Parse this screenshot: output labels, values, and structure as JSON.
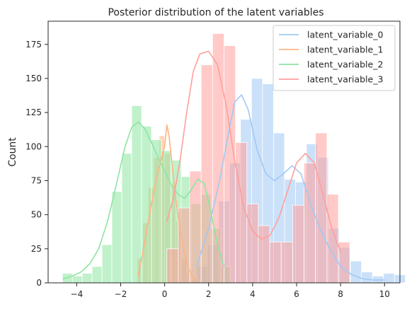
{
  "chart_data": {
    "type": "histogram",
    "title": "Posterior distribution of the latent variables",
    "xlabel": "",
    "ylabel": "Count",
    "xlim": [
      -5.3,
      10.7
    ],
    "ylim": [
      0,
      192
    ],
    "xticks": [
      -4,
      -2,
      0,
      2,
      4,
      6,
      8,
      10
    ],
    "yticks": [
      0,
      25,
      50,
      75,
      100,
      125,
      150,
      175
    ],
    "legend_position": "upper right",
    "series": [
      {
        "name": "latent_variable_0",
        "color": "#a1c9f4",
        "bin_start": 1.45,
        "bin_width": 0.5,
        "counts": [
          12,
          28,
          60,
          88,
          120,
          150,
          146,
          110,
          76,
          74,
          102,
          92,
          40,
          26,
          16,
          8,
          5,
          7,
          6
        ],
        "kde_x": [
          1.45,
          2.0,
          2.5,
          3.0,
          3.2,
          3.5,
          3.8,
          4.2,
          4.6,
          5.0,
          5.4,
          5.8,
          6.2,
          6.6,
          7.0,
          7.5,
          8.0,
          8.5,
          9.0,
          9.5,
          10.0
        ],
        "kde_y": [
          12,
          40,
          75,
          118,
          133,
          138,
          127,
          98,
          80,
          75,
          80,
          86,
          80,
          60,
          42,
          25,
          12,
          6,
          3,
          2,
          2
        ]
      },
      {
        "name": "latent_variable_1",
        "color": "#ffb482",
        "bin_start": -1.25,
        "bin_width": 0.25,
        "counts": [
          18,
          44,
          70,
          92,
          108,
          95,
          72,
          45,
          18,
          8,
          3
        ],
        "kde_x": [
          -1.2,
          -1.0,
          -0.8,
          -0.6,
          -0.4,
          -0.2,
          0.0,
          0.1,
          0.2,
          0.35,
          0.5,
          0.7,
          0.9,
          1.1,
          1.3,
          1.5
        ],
        "kde_y": [
          5,
          22,
          40,
          58,
          75,
          88,
          100,
          116,
          108,
          85,
          62,
          40,
          22,
          10,
          4,
          2
        ]
      },
      {
        "name": "latent_variable_2",
        "color": "#8de5a1",
        "bin_start": -4.65,
        "bin_width": 0.45,
        "counts": [
          7,
          5,
          7,
          12,
          28,
          67,
          95,
          130,
          115,
          105,
          97,
          90,
          78,
          58,
          65,
          40,
          12
        ],
        "kde_x": [
          -4.6,
          -4.2,
          -3.8,
          -3.4,
          -3.0,
          -2.6,
          -2.2,
          -1.8,
          -1.5,
          -1.2,
          -0.9,
          -0.6,
          -0.3,
          0.0,
          0.3,
          0.6,
          0.9,
          1.2,
          1.5,
          1.8,
          2.1,
          2.4,
          2.7
        ],
        "kde_y": [
          3,
          5,
          8,
          14,
          25,
          45,
          72,
          100,
          114,
          118,
          113,
          103,
          92,
          82,
          72,
          65,
          62,
          68,
          76,
          73,
          52,
          28,
          12
        ]
      },
      {
        "name": "latent_variable_3",
        "color": "#ff9f9b",
        "bin_start": 0.1,
        "bin_width": 0.52,
        "counts": [
          25,
          55,
          82,
          160,
          183,
          174,
          103,
          58,
          42,
          30,
          30,
          57,
          88,
          110,
          65,
          30
        ],
        "kde_x": [
          0.1,
          0.4,
          0.7,
          1.0,
          1.3,
          1.6,
          2.0,
          2.4,
          2.8,
          3.2,
          3.6,
          4.0,
          4.4,
          4.8,
          5.2,
          5.6,
          6.0,
          6.4,
          6.8,
          7.2,
          7.6,
          8.0
        ],
        "kde_y": [
          45,
          62,
          90,
          125,
          155,
          168,
          170,
          160,
          130,
          88,
          55,
          38,
          32,
          35,
          48,
          68,
          88,
          95,
          88,
          65,
          40,
          23
        ]
      }
    ]
  }
}
